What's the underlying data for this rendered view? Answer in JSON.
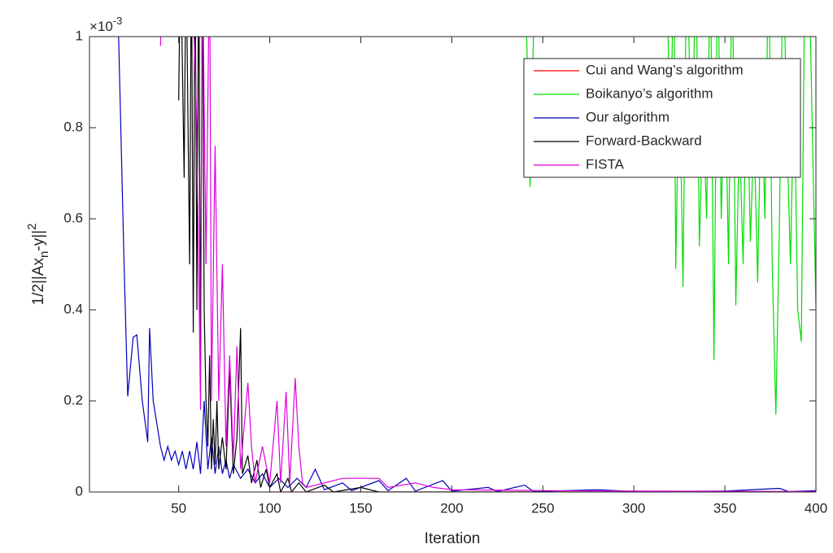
{
  "chart_data": {
    "type": "line",
    "xlabel": "Iteration",
    "ylabel": {
      "main": "1/2||Ax",
      "sub": "n",
      "rest": "-y||",
      "sup": "2"
    },
    "y_multiplier": {
      "base": "×10",
      "exponent": "-3"
    },
    "xlim": [
      1,
      400
    ],
    "ylim": [
      0,
      1
    ],
    "xticks": [
      50,
      100,
      150,
      200,
      250,
      300,
      350,
      400
    ],
    "yticks": [
      0,
      0.2,
      0.4,
      0.6,
      0.8,
      1
    ],
    "grid": false,
    "legend": "northeast",
    "series": [
      {
        "name": "Cui and Wang’s algorithm",
        "color": "#ff0000",
        "x": [
          100,
          400
        ],
        "values": [
          0,
          0
        ]
      },
      {
        "name": "Boikanyo’s algorithm",
        "color": "#00dd00",
        "x": [
          200,
          205,
          206,
          240,
          243,
          246,
          318,
          320,
          322,
          323,
          325,
          327,
          329,
          332,
          334,
          336,
          338,
          340,
          342,
          344,
          346,
          348,
          350,
          352,
          354,
          356,
          358,
          360,
          362,
          364,
          366,
          368,
          370,
          372,
          374,
          376,
          378,
          380,
          382,
          384,
          386,
          388,
          390,
          392,
          394,
          396,
          398,
          400
        ],
        "values": [
          1.2,
          1.0,
          1.2,
          1.2,
          0.67,
          1.2,
          1.2,
          0.72,
          1.2,
          0.49,
          0.95,
          0.45,
          1.2,
          0.7,
          1.2,
          0.54,
          0.85,
          0.6,
          1.2,
          0.29,
          1.2,
          0.6,
          0.95,
          0.5,
          1.2,
          0.41,
          0.8,
          0.5,
          0.95,
          0.55,
          0.8,
          0.46,
          0.9,
          0.6,
          1.2,
          0.5,
          0.17,
          0.6,
          1.2,
          0.8,
          0.5,
          0.9,
          0.4,
          0.33,
          1.2,
          1.2,
          0.8,
          0.41
        ]
      },
      {
        "name": "Our algorithm",
        "color": "#0000bb",
        "x": [
          17,
          20,
          22,
          25,
          27,
          30,
          33,
          34,
          36,
          40,
          42,
          44,
          46,
          48,
          50,
          52,
          54,
          56,
          58,
          60,
          62,
          64,
          66,
          68,
          70,
          72,
          74,
          76,
          78,
          80,
          84,
          88,
          92,
          96,
          100,
          105,
          110,
          115,
          120,
          125,
          130,
          140,
          145,
          160,
          165,
          175,
          180,
          195,
          200,
          220,
          225,
          240,
          245,
          280,
          300,
          350,
          380,
          385,
          400
        ],
        "values": [
          1.0,
          0.5,
          0.21,
          0.34,
          0.345,
          0.2,
          0.11,
          0.36,
          0.2,
          0.1,
          0.07,
          0.1,
          0.07,
          0.09,
          0.06,
          0.09,
          0.05,
          0.09,
          0.05,
          0.11,
          0.04,
          0.2,
          0.05,
          0.12,
          0.04,
          0.1,
          0.04,
          0.07,
          0.03,
          0.06,
          0.03,
          0.05,
          0.02,
          0.04,
          0.01,
          0.03,
          0.01,
          0.03,
          0.01,
          0.05,
          0.005,
          0.02,
          0.003,
          0.025,
          0.003,
          0.03,
          0.002,
          0.025,
          0.002,
          0.01,
          0.001,
          0.015,
          0.001,
          0.005,
          0.001,
          0.002,
          0.008,
          0.001,
          0.003
        ]
      },
      {
        "name": "Forward-Backward",
        "color": "#000000",
        "x": [
          50,
          51,
          53,
          54,
          56,
          57,
          58,
          59,
          60,
          61,
          62,
          63,
          64,
          65,
          66,
          67,
          68,
          69,
          70,
          71,
          72,
          74,
          76,
          78,
          80,
          82,
          84,
          85,
          88,
          90,
          93,
          95,
          98,
          100,
          104,
          106,
          110,
          112,
          116,
          120,
          130,
          135,
          150,
          160,
          200,
          400
        ],
        "values": [
          0.86,
          1.2,
          0.69,
          1.2,
          0.5,
          1.2,
          0.35,
          1.2,
          0.4,
          1.2,
          0.29,
          1.2,
          0.4,
          0.2,
          0.1,
          0.3,
          0.05,
          0.16,
          0.06,
          0.2,
          0.05,
          0.12,
          0.05,
          0.27,
          0.04,
          0.12,
          0.36,
          0.04,
          0.08,
          0.02,
          0.07,
          0.01,
          0.05,
          0.01,
          0.04,
          0,
          0.03,
          0,
          0.02,
          0,
          0.015,
          0,
          0.01,
          0,
          0,
          0
        ]
      },
      {
        "name": "FISTA",
        "color": "#dd00dd",
        "x": [
          40,
          41,
          57,
          60,
          62,
          63,
          65,
          67,
          68,
          70,
          72,
          74,
          76,
          78,
          80,
          82,
          84,
          88,
          90,
          92,
          96,
          100,
          104,
          106,
          109,
          111,
          114,
          116,
          118,
          120,
          130,
          140,
          150,
          160,
          165,
          180,
          190,
          200,
          250,
          300,
          400
        ],
        "values": [
          0.98,
          1.2,
          1.2,
          0.8,
          0.18,
          1.2,
          0.5,
          1.2,
          0.2,
          0.76,
          0.2,
          0.5,
          0.1,
          0.3,
          0.07,
          0.32,
          0.05,
          0.24,
          0.1,
          0.02,
          0.1,
          0.02,
          0.2,
          0.02,
          0.22,
          0.02,
          0.25,
          0.1,
          0.02,
          0.01,
          0.02,
          0.03,
          0.03,
          0.03,
          0.01,
          0.02,
          0.01,
          0.005,
          0.003,
          0.002,
          0.001
        ]
      }
    ]
  }
}
